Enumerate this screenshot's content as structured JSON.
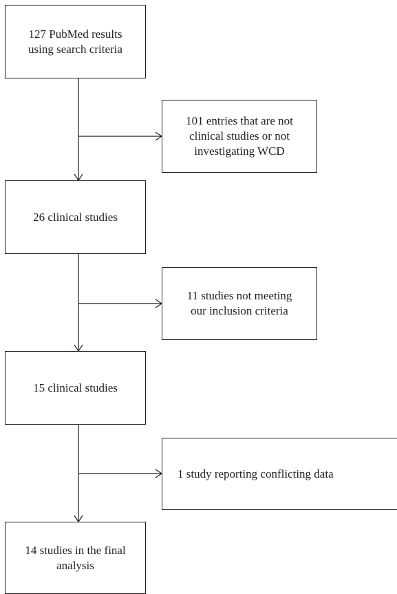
{
  "flowchart": {
    "steps": [
      {
        "id": "pubmed-results",
        "text": "127 PubMed results\nusing search criteria"
      },
      {
        "id": "clinical-studies-26",
        "text": "26 clinical studies"
      },
      {
        "id": "clinical-studies-15",
        "text": "15 clinical studies"
      },
      {
        "id": "final-analysis",
        "text": "14 studies in the final\nanalysis"
      }
    ],
    "exclusions": [
      {
        "id": "not-clinical",
        "text": "101 entries that are not\nclinical studies or not\ninvestigating WCD"
      },
      {
        "id": "not-inclusion",
        "text": "11 studies not meeting\nour inclusion criteria"
      },
      {
        "id": "conflicting",
        "text": "1 study reporting conflicting data"
      }
    ]
  }
}
